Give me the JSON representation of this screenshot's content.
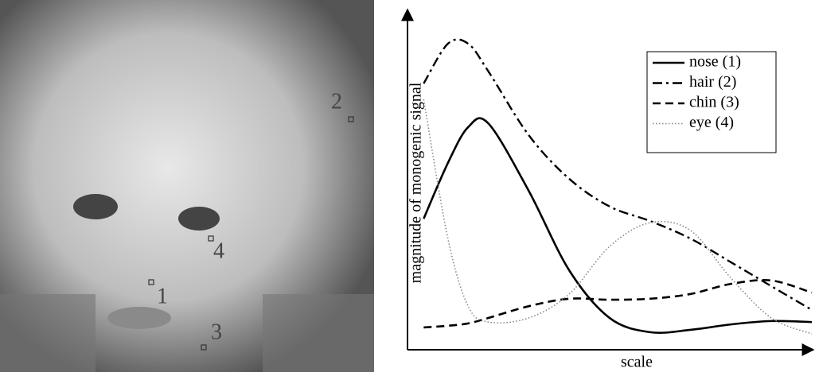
{
  "figure": {
    "point_labels": [
      "1",
      "2",
      "3",
      "4"
    ]
  },
  "chart_data": {
    "type": "line",
    "xlabel": "scale",
    "ylabel": "magnitude of monogenic signal",
    "x": [
      4,
      10,
      15,
      20,
      30,
      40,
      50,
      60,
      70,
      80,
      90,
      100
    ],
    "xlim": [
      0,
      100
    ],
    "ylim": [
      0,
      100
    ],
    "legend": "upper right",
    "series": [
      {
        "name": "nose (1)",
        "color": "#000000",
        "style": "solid",
        "values": [
          38.8,
          55.3,
          65.9,
          67,
          47,
          23.5,
          9.4,
          5.2,
          5.9,
          7.5,
          8.5,
          8.2
        ]
      },
      {
        "name": "hair (2)",
        "color": "#000000",
        "style": "dashdot",
        "values": [
          78.8,
          90.6,
          90.6,
          82.4,
          63.5,
          50.6,
          42.4,
          38.1,
          32.9,
          25.9,
          18.8,
          11.8
        ]
      },
      {
        "name": "chin (3)",
        "color": "#000000",
        "style": "dashed",
        "values": [
          6.6,
          7.1,
          7.8,
          9.4,
          12.9,
          15.1,
          14.8,
          15.1,
          16.5,
          19.5,
          20.5,
          16.9
        ]
      },
      {
        "name": "eye (4)",
        "color": "#888888",
        "style": "dotted",
        "values": [
          74.1,
          32.9,
          12.9,
          8.2,
          9.4,
          16.5,
          30.6,
          37.6,
          35.3,
          21.2,
          9.4,
          4.7
        ]
      }
    ]
  }
}
